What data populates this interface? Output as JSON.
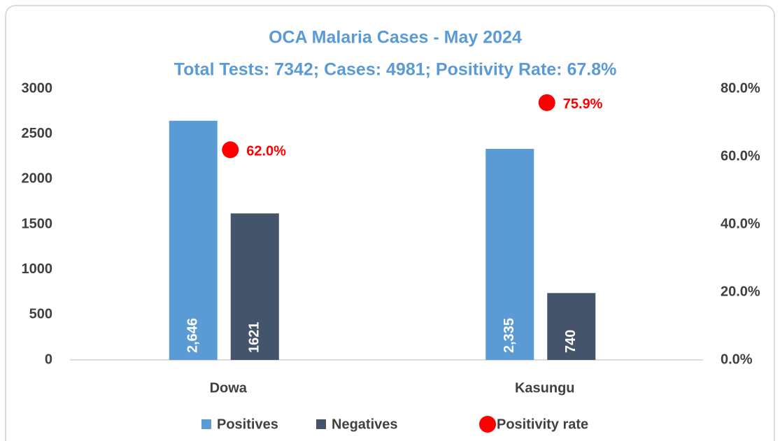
{
  "chart_data": {
    "type": "bar",
    "title": "OCA Malaria Cases - May 2024",
    "subtitle": "Total Tests: 7342; Cases: 4981; Positivity Rate: 67.8%",
    "categories": [
      "Dowa",
      "Kasungu"
    ],
    "series": [
      {
        "name": "Positives",
        "color": "#5b9bd5",
        "values": [
          2646,
          2335
        ],
        "value_labels": [
          "2,646",
          "2,335"
        ]
      },
      {
        "name": "Negatives",
        "color": "#44546a",
        "values": [
          1621,
          740
        ]
      },
      {
        "name": "Positivity rate",
        "color": "#ff0000",
        "type": "scatter",
        "axis": "y2",
        "values": [
          62.0,
          75.9
        ],
        "value_labels": [
          "62.0%",
          "75.9%"
        ]
      }
    ],
    "ylim": [
      0,
      3000
    ],
    "yticks": [
      0,
      500,
      1000,
      1500,
      2000,
      2500,
      3000
    ],
    "y2lim": [
      0,
      80
    ],
    "y2ticks": [
      {
        "value": 0,
        "label": "0.0%"
      },
      {
        "value": 20,
        "label": "20.0%"
      },
      {
        "value": 40,
        "label": "40.0%"
      },
      {
        "value": 60,
        "label": "60.0%"
      },
      {
        "value": 80,
        "label": "80.0%"
      }
    ],
    "grid": false,
    "legend": "bottom"
  }
}
